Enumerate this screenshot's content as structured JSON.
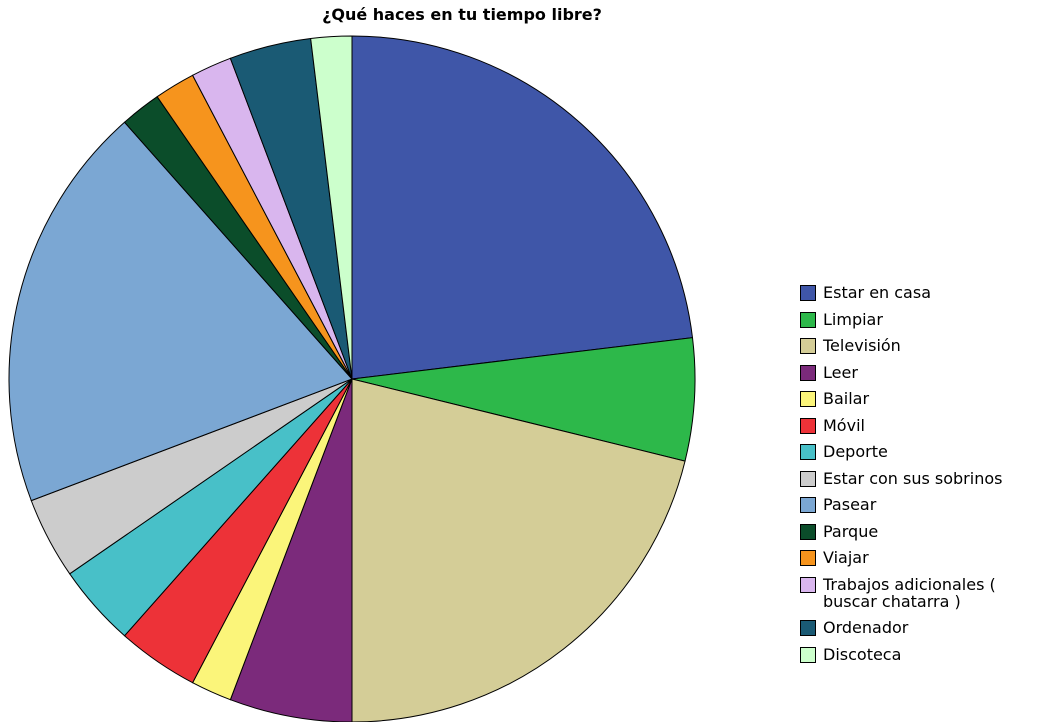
{
  "chart_data": {
    "type": "pie",
    "title": "¿Qué haces en tu tiempo libre?",
    "categories": [
      "Estar en casa",
      "Limpiar",
      "Televisión",
      "Leer",
      "Bailar",
      "Móvil",
      "Deporte",
      "Estar con sus sobrinos",
      "Pasear",
      "Parque",
      "Viajar",
      "Trabajos adicionales ( buscar chatarra )",
      "Ordenador",
      "Discoteca"
    ],
    "values": [
      12,
      3,
      11,
      3,
      1,
      2,
      2,
      2,
      10,
      1,
      1,
      1,
      2,
      1
    ],
    "colors": [
      "#3f56a8",
      "#2db84a",
      "#d4cd97",
      "#7b2a7b",
      "#fbf57a",
      "#ed3238",
      "#48c0c8",
      "#cccccc",
      "#7ba7d3",
      "#0b4d2a",
      "#f6941d",
      "#d9b6ee",
      "#1a5a74",
      "#ccffcc"
    ],
    "legend": "right"
  }
}
